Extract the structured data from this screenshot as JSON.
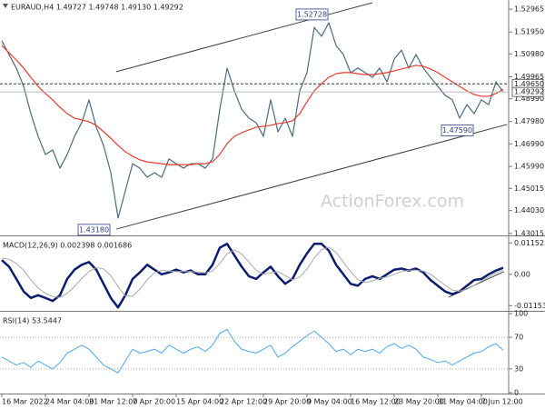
{
  "chart_data": [
    {
      "type": "line",
      "title": "EURAUD,H4 1.49727 1.49748 1.49130 1.49292",
      "watermark": "ActionForex.com",
      "ylim": [
        1.4297,
        1.5337
      ],
      "yticks": [
        1.52965,
        {
          "value": 1.5195,
          "label": "1.51950"
        },
        {
          "value": 1.5098,
          "label": "1.50980"
        },
        1.49965,
        {
          "value": 1.4899,
          "label": "1.48990"
        },
        {
          "value": 1.4798,
          "label": "1.47980"
        },
        {
          "value": 1.4699,
          "label": "1.46990"
        },
        {
          "value": 1.4599,
          "label": "1.45990"
        },
        1.45015,
        {
          "value": 1.4403,
          "label": "1.44030"
        },
        1.43015
      ],
      "series": [
        {
          "color": "#4a6b80",
          "values": [
            1.5156,
            1.5095,
            1.5035,
            1.4954,
            1.4833,
            1.4732,
            1.4652,
            1.4672,
            1.4591,
            1.4652,
            1.4732,
            1.4793,
            1.4894,
            1.4773,
            1.4692,
            1.4571,
            1.437,
            1.4491,
            1.4611,
            1.4591,
            1.4551,
            1.4571,
            1.4551,
            1.4632,
            1.4611,
            1.4591,
            1.4611,
            1.4611,
            1.4591,
            1.4632,
            1.4853,
            1.5035,
            1.4934,
            1.4853,
            1.4813,
            1.4793,
            1.4732,
            1.4894,
            1.4752,
            1.4813,
            1.4732,
            1.4934,
            1.5015,
            1.5216,
            1.5176,
            1.5236,
            1.5135,
            1.5095,
            1.5015,
            1.5035,
            1.5015,
            1.4994,
            1.5035,
            1.4974,
            1.5075,
            1.5115,
            1.5035,
            1.5095,
            1.5035,
            1.4994,
            1.4954,
            1.4914,
            1.4894,
            1.4813,
            1.4873,
            1.4833,
            1.4894,
            1.4873,
            1.4974,
            1.4929
          ]
        },
        {
          "color": "#e53b2f",
          "values": [
            1.5135,
            1.5103,
            1.5071,
            1.5035,
            1.4994,
            1.4954,
            1.4922,
            1.4894,
            1.4861,
            1.4833,
            1.4813,
            1.4805,
            1.4797,
            1.4781,
            1.4753,
            1.4724,
            1.4692,
            1.4664,
            1.4644,
            1.4628,
            1.4619,
            1.4615,
            1.4611,
            1.4607,
            1.4607,
            1.4607,
            1.4607,
            1.4611,
            1.4611,
            1.4619,
            1.4652,
            1.47,
            1.4732,
            1.4748,
            1.4761,
            1.4773,
            1.4777,
            1.4781,
            1.4789,
            1.4793,
            1.4801,
            1.4833,
            1.4886,
            1.4934,
            1.4966,
            1.4994,
            1.501,
            1.5015,
            1.5015,
            1.501,
            1.5006,
            1.5006,
            1.501,
            1.5015,
            1.5023,
            1.5031,
            1.5039,
            1.5047,
            1.5043,
            1.5031,
            1.5015,
            1.4994,
            1.4974,
            1.4954,
            1.4934,
            1.4918,
            1.491,
            1.491,
            1.4922,
            1.4942
          ]
        }
      ],
      "price_lines": [
        {
          "value": 1.4965,
          "label": "1.49650",
          "style": "dashed"
        },
        {
          "value": 1.49292,
          "label": "1.49292",
          "style": "solid"
        }
      ],
      "annotations": [
        {
          "x": 45,
          "value": 1.52728,
          "label": "1.52728"
        },
        {
          "x": 15,
          "value": 1.4318,
          "label": "1.43180"
        },
        {
          "x": 65,
          "value": 1.4759,
          "label": "1.47590"
        }
      ],
      "trendlines": [
        {
          "start": [
            15.75,
            1.5019
          ],
          "end": [
            51,
            1.5325
          ]
        },
        {
          "start": [
            15.75,
            1.4321
          ],
          "end": [
            69.5,
            1.4785
          ]
        }
      ]
    },
    {
      "type": "line",
      "title": "MACD(12,26,9) 0.002398 0.001686",
      "ylim": [
        -0.0131,
        0.0133
      ],
      "yticks": [
        -0.011537,
        {
          "value": 0,
          "label": "0.00"
        },
        0.011525
      ],
      "series": [
        {
          "color": "#0c1c70",
          "width": 2.5,
          "values": [
            0.0052,
            0.0028,
            -0.0017,
            -0.0063,
            -0.0087,
            -0.0077,
            -0.0087,
            -0.0098,
            -0.0077,
            -0.0017,
            0.0017,
            0.0035,
            0.0045,
            0.0017,
            -0.0035,
            -0.0087,
            -0.0122,
            -0.0077,
            -0.0017,
            0.0007,
            0.0035,
            0.0017,
            0,
            0.0007,
            0.0017,
            0.0007,
            0.0014,
            0,
            0,
            0.0035,
            0.0098,
            0.0112,
            0.007,
            0.0028,
            -0.0007,
            -0.0017,
            0.0007,
            0.0028,
            -0.0007,
            -0.0035,
            -0.0017,
            0.0035,
            0.0077,
            0.0112,
            0.0112,
            0.0087,
            0.0035,
            0,
            -0.0035,
            -0.0042,
            -0.0017,
            -0.0007,
            -0.0017,
            0,
            0.0017,
            0.0021,
            0.0014,
            0.0021,
            0.0007,
            -0.0021,
            -0.0042,
            -0.0063,
            -0.0073,
            -0.0063,
            -0.0042,
            -0.0021,
            -0.0017,
            0,
            0.0014,
            0.0024
          ]
        },
        {
          "color": "#a8a8a8",
          "width": 1,
          "values": [
            0.006,
            0.0055,
            0.004,
            0.0015,
            -0.002,
            -0.005,
            -0.007,
            -0.0082,
            -0.0085,
            -0.007,
            -0.0045,
            -0.0015,
            0.001,
            0.0025,
            0.002,
            -0.0005,
            -0.0045,
            -0.008,
            -0.008,
            -0.0055,
            -0.002,
            0.0005,
            0.0015,
            0.0012,
            0.001,
            0.001,
            0.001,
            0.0008,
            0.0005,
            0.0012,
            0.004,
            0.0075,
            0.009,
            0.0075,
            0.0045,
            0.0015,
            0.0,
            0.0005,
            0.001,
            -0.0005,
            -0.002,
            -0.001,
            0.002,
            0.006,
            0.009,
            0.01,
            0.008,
            0.0045,
            0.001,
            -0.002,
            -0.003,
            -0.0025,
            -0.0015,
            -0.001,
            0.0,
            0.001,
            0.0015,
            0.0015,
            0.0012,
            0.0,
            -0.002,
            -0.004,
            -0.0058,
            -0.0062,
            -0.0055,
            -0.004,
            -0.0025,
            -0.001,
            0.0005,
            0.0017
          ]
        }
      ],
      "trendlines": [
        {
          "start": [
            61.5,
            -0.0084
          ],
          "end": [
            69.1,
            0.001
          ]
        }
      ]
    },
    {
      "type": "line",
      "title": "RSI(14) 53.5447",
      "ylim": [
        0,
        100
      ],
      "yticks": [
        0,
        30,
        70,
        100
      ],
      "levels": [
        30,
        70
      ],
      "categories": [
        "16 Mar 2022",
        null,
        null,
        null,
        null,
        null,
        "24 Mar 04:00",
        null,
        null,
        null,
        null,
        null,
        "31 Mar 12:00",
        null,
        null,
        null,
        null,
        null,
        "7 Apr 20:00",
        null,
        null,
        null,
        null,
        null,
        "15 Apr 04:00",
        null,
        null,
        null,
        null,
        null,
        "22 Apr 12:00",
        null,
        null,
        null,
        null,
        null,
        "29 Apr 20:00",
        null,
        null,
        null,
        null,
        null,
        "9 May 04:00",
        null,
        null,
        null,
        null,
        null,
        "16 May 12:00",
        null,
        null,
        null,
        null,
        null,
        "23 May 20:00",
        null,
        null,
        null,
        null,
        null,
        "31 May 04:00",
        null,
        null,
        null,
        null,
        null,
        "7 Jun 12:00",
        null,
        null,
        null
      ],
      "series": [
        {
          "color": "#4fa8e8",
          "width": 1,
          "values": [
            45,
            40,
            35,
            38,
            32,
            40,
            35,
            30,
            38,
            50,
            55,
            60,
            55,
            45,
            35,
            30,
            25,
            40,
            55,
            50,
            52,
            55,
            50,
            60,
            55,
            50,
            55,
            58,
            52,
            60,
            75,
            80,
            65,
            55,
            52,
            50,
            55,
            60,
            45,
            50,
            58,
            65,
            72,
            78,
            70,
            62,
            52,
            55,
            48,
            55,
            52,
            55,
            50,
            58,
            62,
            56,
            60,
            55,
            45,
            42,
            38,
            40,
            35,
            40,
            45,
            50,
            52,
            58,
            62,
            53.5447
          ]
        }
      ]
    }
  ]
}
